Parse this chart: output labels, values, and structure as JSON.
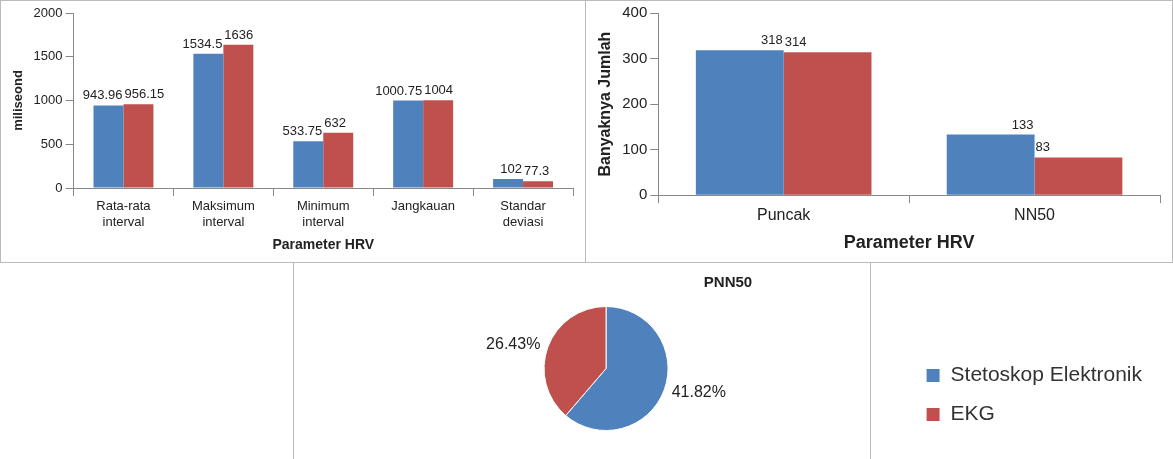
{
  "chart_data": [
    {
      "type": "bar",
      "categories": [
        "Rata-rata interval",
        "Maksimum interval",
        "Minimum interval",
        "Jangkauan",
        "Standar deviasi"
      ],
      "xlabel": "Parameter HRV",
      "ylabel": "miliseond",
      "ylim": [
        0,
        2000
      ],
      "yticks": [
        0,
        500,
        1000,
        1500,
        2000
      ],
      "data_labels": true,
      "series": [
        {
          "color": "#4f81bd",
          "values": [
            943.96,
            1534.5,
            533.75,
            1000.75,
            102
          ]
        },
        {
          "color": "#c0504d",
          "values": [
            956.15,
            1636,
            632,
            1004,
            77.3
          ]
        }
      ]
    },
    {
      "type": "bar",
      "categories": [
        "Puncak",
        "NN50"
      ],
      "xlabel": "Parameter HRV",
      "ylabel": "Banyaknya Jumlah",
      "ylim": [
        0,
        400
      ],
      "yticks": [
        0,
        100,
        200,
        300,
        400
      ],
      "data_labels": true,
      "series": [
        {
          "color": "#4f81bd",
          "values": [
            318,
            133
          ]
        },
        {
          "color": "#c0504d",
          "values": [
            314,
            83
          ]
        }
      ]
    },
    {
      "type": "pie",
      "title": "PNN50",
      "categories": [
        "Stetoskop Elektronik",
        "EKG"
      ],
      "values": [
        41.82,
        26.43
      ],
      "colors": [
        "#4f81bd",
        "#c0504d"
      ],
      "value_labels": [
        "41.82%",
        "26.43%"
      ],
      "legend": "bottom right"
    }
  ]
}
